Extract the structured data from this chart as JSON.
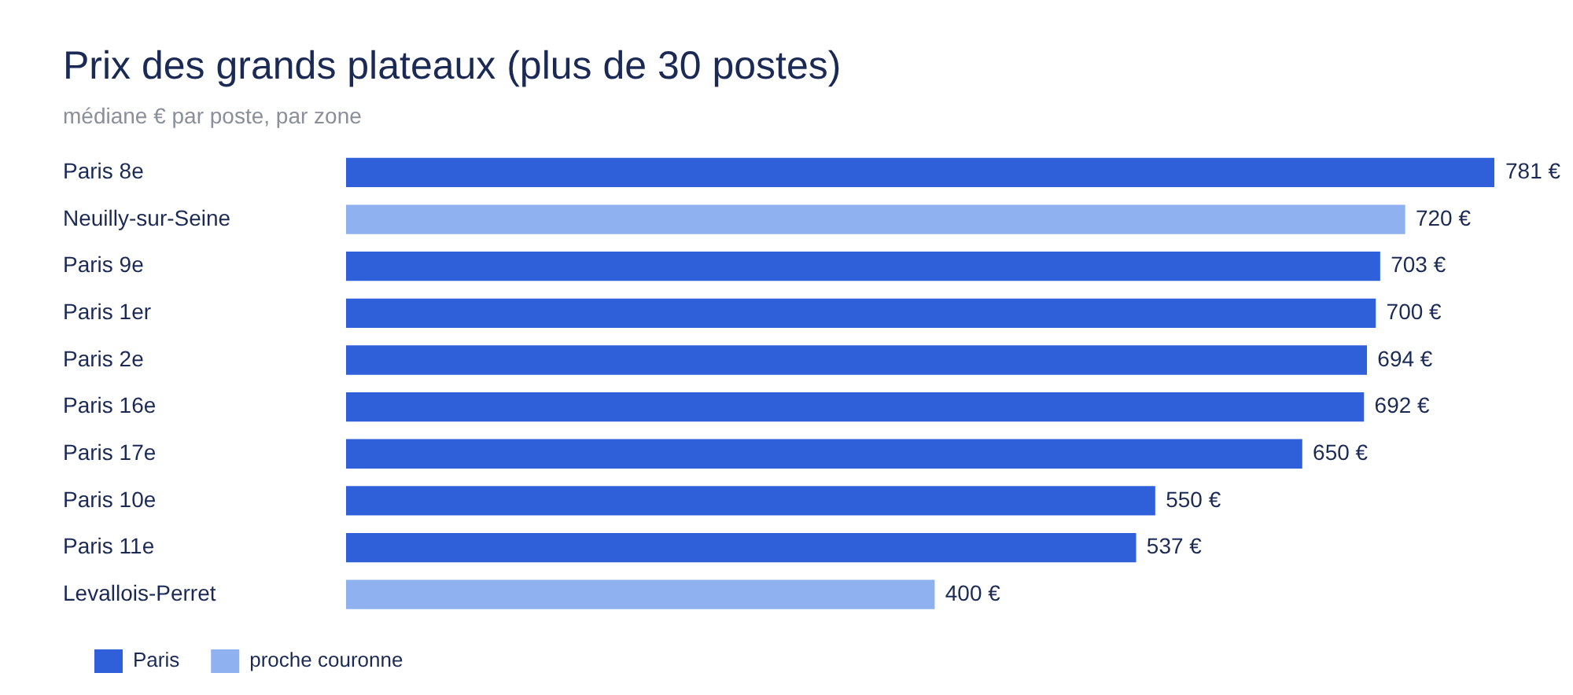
{
  "chart_data": {
    "type": "bar",
    "orientation": "horizontal",
    "stacked": true,
    "title": "Prix des grands plateaux (plus de 30 postes)",
    "subtitle": "médiane € par poste, par zone",
    "categories": [
      "Paris 8e",
      "Neuilly-sur-Seine",
      "Paris 9e",
      "Paris 1er",
      "Paris 2e",
      "Paris 16e",
      "Paris 17e",
      "Paris 10e",
      "Paris 11e",
      "Levallois-Perret"
    ],
    "series": [
      {
        "name": "Paris",
        "color": "#2f5fd9",
        "values": [
          781,
          null,
          703,
          700,
          694,
          692,
          650,
          550,
          537,
          null
        ],
        "value_labels": [
          "781 €",
          null,
          "703 €",
          "700 €",
          "694 €",
          "692 €",
          "650 €",
          "550 €",
          "537 €",
          null
        ]
      },
      {
        "name": "proche couronne",
        "color": "#8fb1ef",
        "values": [
          null,
          720,
          null,
          null,
          null,
          null,
          null,
          null,
          null,
          400
        ],
        "value_labels": [
          null,
          "720 €",
          null,
          null,
          null,
          null,
          null,
          null,
          null,
          "400 €"
        ]
      }
    ],
    "legend": "bottom left"
  }
}
